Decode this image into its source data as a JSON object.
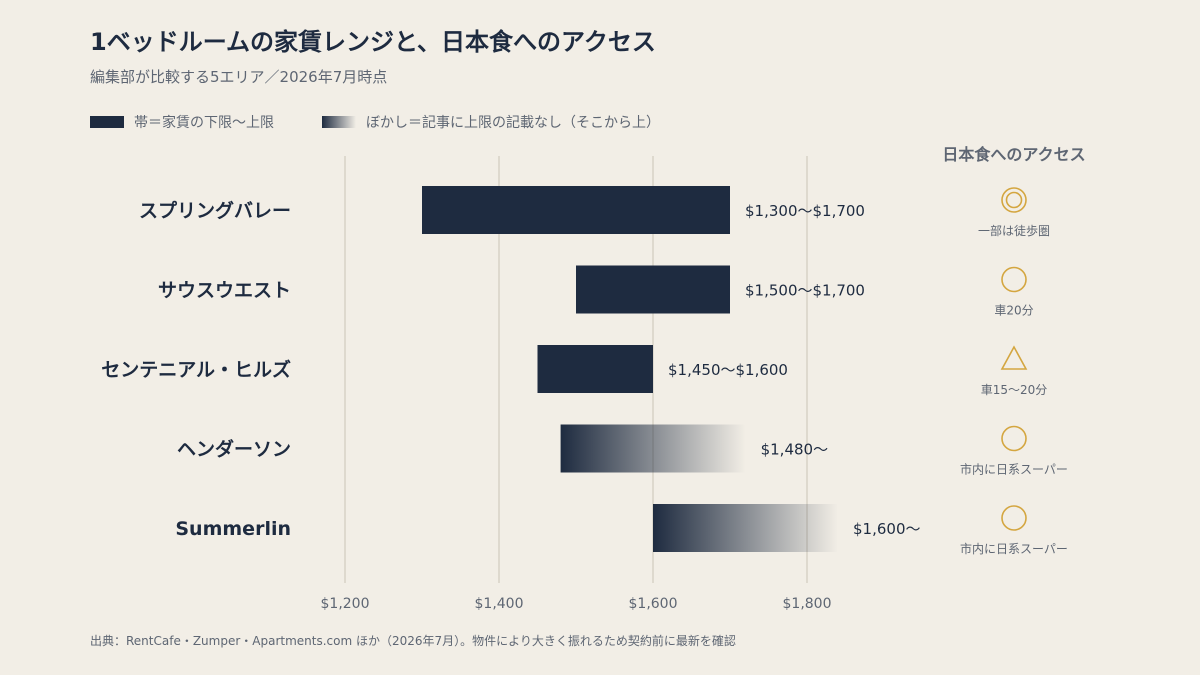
{
  "title": "1ベッドルームの家賃レンジと、日本食へのアクセス",
  "subtitle": "編集部が比較する5エリア／2026年7月時点",
  "legend": {
    "solid_label": "帯＝家賃の下限〜上限",
    "fade_label": "ぼかし＝記事に上限の記載なし（そこから上）"
  },
  "access_header": "日本食へのアクセス",
  "source": "出典：RentCafe・Zumper・Apartments.com ほか（2026年7月）。物件により大きく振れるため契約前に最新を確認",
  "colors": {
    "bar": "#1e2b40",
    "grid": "#d8d2c6",
    "accent": "#d4a640",
    "tick": "#5e6673"
  },
  "chart_data": {
    "type": "bar",
    "orientation": "horizontal",
    "xlim": [
      1100,
      1900
    ],
    "xticks": [
      1200,
      1400,
      1600,
      1800
    ],
    "xtick_labels": [
      "$1,200",
      "$1,400",
      "$1,600",
      "$1,800"
    ],
    "grid": true,
    "rows": [
      {
        "name": "スプリングバレー",
        "low": 1300,
        "high": 1700,
        "open_ended": false,
        "label": "$1,300〜$1,700",
        "access_icon": "double-circle",
        "access_label": "一部は徒歩圏"
      },
      {
        "name": "サウスウエスト",
        "low": 1500,
        "high": 1700,
        "open_ended": false,
        "label": "$1,500〜$1,700",
        "access_icon": "circle",
        "access_label": "車20分"
      },
      {
        "name": "センテニアル・ヒルズ",
        "low": 1450,
        "high": 1600,
        "open_ended": false,
        "label": "$1,450〜$1,600",
        "access_icon": "triangle",
        "access_label": "車15〜20分"
      },
      {
        "name": "ヘンダーソン",
        "low": 1480,
        "high": null,
        "open_ended": true,
        "label": "$1,480〜",
        "access_icon": "circle",
        "access_label": "市内に日系スーパー"
      },
      {
        "name": "Summerlin",
        "low": 1600,
        "high": null,
        "open_ended": true,
        "label": "$1,600〜",
        "access_icon": "circle",
        "access_label": "市内に日系スーパー"
      }
    ]
  }
}
